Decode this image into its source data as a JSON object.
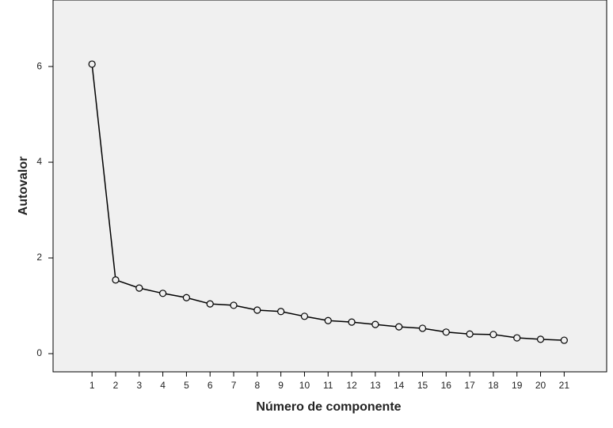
{
  "chart_data": {
    "type": "line",
    "x_label": "Número de componente",
    "y_label": "Autovalor",
    "x": [
      1,
      2,
      3,
      4,
      5,
      6,
      7,
      8,
      9,
      10,
      11,
      12,
      13,
      14,
      15,
      16,
      17,
      18,
      19,
      20,
      21
    ],
    "series": [
      {
        "color": "#000000",
        "values": [
          6.05,
          1.54,
          1.37,
          1.26,
          1.17,
          1.04,
          1.01,
          0.91,
          0.88,
          0.78,
          0.69,
          0.66,
          0.61,
          0.56,
          0.53,
          0.45,
          0.41,
          0.4,
          0.33,
          0.3,
          0.28
        ]
      }
    ],
    "xlim": [
      -0.65,
      22.8
    ],
    "ylim": [
      -0.38,
      7.39
    ],
    "xticks": [
      1,
      2,
      3,
      4,
      5,
      6,
      7,
      8,
      9,
      10,
      11,
      12,
      13,
      14,
      15,
      16,
      17,
      18,
      19,
      20,
      21
    ],
    "yticks": [
      0,
      2,
      4,
      6
    ],
    "background": "#f0f0f0"
  }
}
